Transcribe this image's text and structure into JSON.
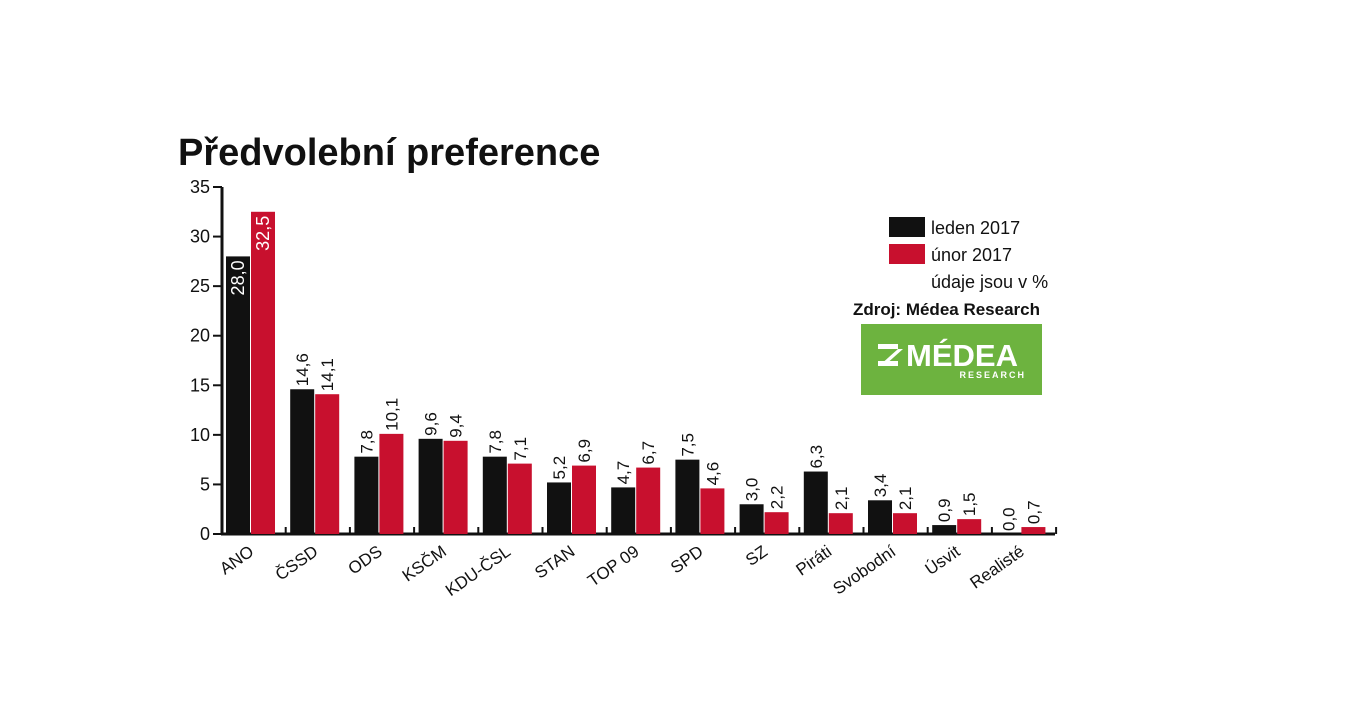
{
  "chart_data": {
    "type": "bar",
    "title": "Předvolební preference",
    "categories": [
      "ANO",
      "ČSSD",
      "ODS",
      "KSČM",
      "KDU-ČSL",
      "STAN",
      "TOP 09",
      "SPD",
      "SZ",
      "Piráti",
      "Svobodní",
      "Úsvit",
      "Realisté"
    ],
    "series": [
      {
        "name": "leden 2017",
        "color": "#111111",
        "values": [
          28.0,
          14.6,
          7.8,
          9.6,
          7.8,
          5.2,
          4.7,
          7.5,
          3.0,
          6.3,
          3.4,
          0.9,
          0.0
        ],
        "labels": [
          "28,0",
          "14,6",
          "7,8",
          "9,6",
          "7,8",
          "5,2",
          "4,7",
          "7,5",
          "3,0",
          "6,3",
          "3,4",
          "0,9",
          "0,0"
        ]
      },
      {
        "name": "únor 2017",
        "color": "#c8102e",
        "values": [
          32.5,
          14.1,
          10.1,
          9.4,
          7.1,
          6.9,
          6.7,
          4.6,
          2.2,
          2.1,
          2.1,
          1.5,
          0.7
        ],
        "labels": [
          "32,5",
          "14,1",
          "10,1",
          "9,4",
          "7,1",
          "6,9",
          "6,7",
          "4,6",
          "2,2",
          "2,1",
          "2,1",
          "1,5",
          "0,7"
        ]
      }
    ],
    "ylim": [
      0,
      35
    ],
    "yticks": [
      0,
      5,
      10,
      15,
      20,
      25,
      30,
      35
    ],
    "legend_position": "top-right",
    "legend_note": "údaje jsou v %",
    "source": "Zdroj: Médea Research",
    "grid": false
  },
  "logo": {
    "name": "MÉDEA",
    "subtitle": "RESEARCH",
    "color": "#6db33f"
  }
}
